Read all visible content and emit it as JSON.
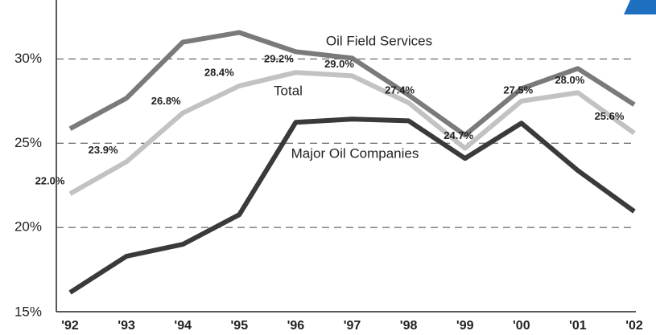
{
  "chart_data": {
    "type": "line",
    "categories": [
      "'92",
      "'93",
      "'94",
      "'95",
      "'96",
      "'97",
      "'98",
      "'99",
      "'00",
      "'01",
      "'02"
    ],
    "series": [
      {
        "name": "Oil Field Services",
        "color": "#7a7a7a",
        "values": [
          25.86,
          27.67,
          31.0,
          31.57,
          30.43,
          30.05,
          27.86,
          25.48,
          28.24,
          29.43,
          27.29
        ]
      },
      {
        "name": "Total",
        "color": "#c2c2c2",
        "values": [
          22.0,
          23.9,
          26.8,
          28.4,
          29.2,
          29.0,
          27.4,
          24.7,
          27.5,
          28.0,
          25.6
        ],
        "value_labels": [
          "22.0%",
          "23.9%",
          "26.8%",
          "28.4%",
          "29.2%",
          "29.0%",
          "27.4%",
          "24.7%",
          "27.5%",
          "28.0%",
          "25.6%"
        ]
      },
      {
        "name": "Major Oil Companies",
        "color": "#3a3a3a",
        "values": [
          16.14,
          18.29,
          19.0,
          20.76,
          26.24,
          26.43,
          26.33,
          24.1,
          26.19,
          23.38,
          20.95
        ]
      }
    ],
    "ylim": [
      15,
      33.5
    ],
    "yticks": [
      {
        "value": 15,
        "label": "15%"
      },
      {
        "value": 20,
        "label": "20%"
      },
      {
        "value": 25,
        "label": "25%"
      },
      {
        "value": 30,
        "label": "30%"
      }
    ],
    "grid": true
  }
}
